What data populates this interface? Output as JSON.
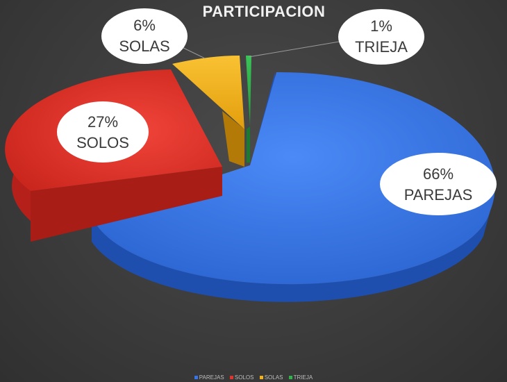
{
  "colors": {
    "parejas": "#3575e8",
    "solos": "#e2342a",
    "solas": "#f2b01a",
    "trieja": "#2fb34a"
  },
  "chart_data": {
    "type": "pie",
    "title": "PARTICIPACION",
    "categories": [
      "PAREJAS",
      "SOLOS",
      "SOLAS",
      "TRIEJA"
    ],
    "values": [
      66,
      27,
      6,
      1
    ],
    "percent_labels": [
      "66%",
      "27%",
      "6%",
      "1%"
    ],
    "legend_position": "bottom",
    "three_d": true,
    "exploded": true
  }
}
